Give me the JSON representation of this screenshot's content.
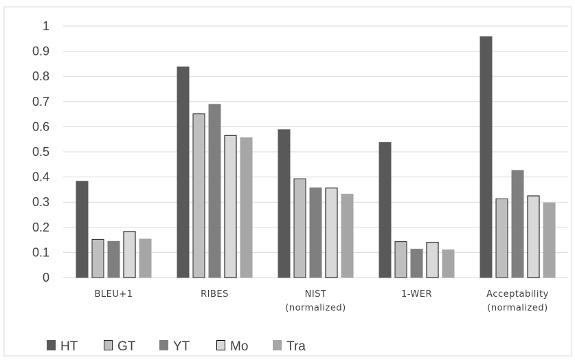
{
  "chart_data": {
    "type": "bar",
    "title": "",
    "xlabel": "",
    "ylabel": "",
    "ylim": [
      0,
      1
    ],
    "yticks": [
      "0",
      "0.1",
      "0.2",
      "0.3",
      "0.4",
      "0.5",
      "0.6",
      "0.7",
      "0.8",
      "0.9",
      "1"
    ],
    "grid": true,
    "legend_position": "bottom-left",
    "categories": [
      [
        "BLEU+1"
      ],
      [
        "RIBES"
      ],
      [
        "NIST",
        "(normalized)"
      ],
      [
        "1-WER"
      ],
      [
        "Acceptability",
        "(normalized)"
      ]
    ],
    "series": [
      {
        "name": "HT",
        "color": "#595959",
        "border": "#595959",
        "values": [
          0.383,
          0.838,
          0.588,
          0.537,
          0.958
        ]
      },
      {
        "name": "GT",
        "color": "#bfbfbf",
        "border": "#262626",
        "values": [
          0.152,
          0.651,
          0.393,
          0.143,
          0.313
        ]
      },
      {
        "name": "YT",
        "color": "#7f7f7f",
        "border": "#7f7f7f",
        "values": [
          0.144,
          0.689,
          0.357,
          0.113,
          0.426
        ]
      },
      {
        "name": "Mo",
        "color": "#d9d9d9",
        "border": "#000000",
        "values": [
          0.183,
          0.565,
          0.356,
          0.14,
          0.325
        ]
      },
      {
        "name": "Tra",
        "color": "#a6a6a6",
        "border": "#a6a6a6",
        "values": [
          0.153,
          0.556,
          0.332,
          0.11,
          0.297
        ]
      }
    ]
  }
}
